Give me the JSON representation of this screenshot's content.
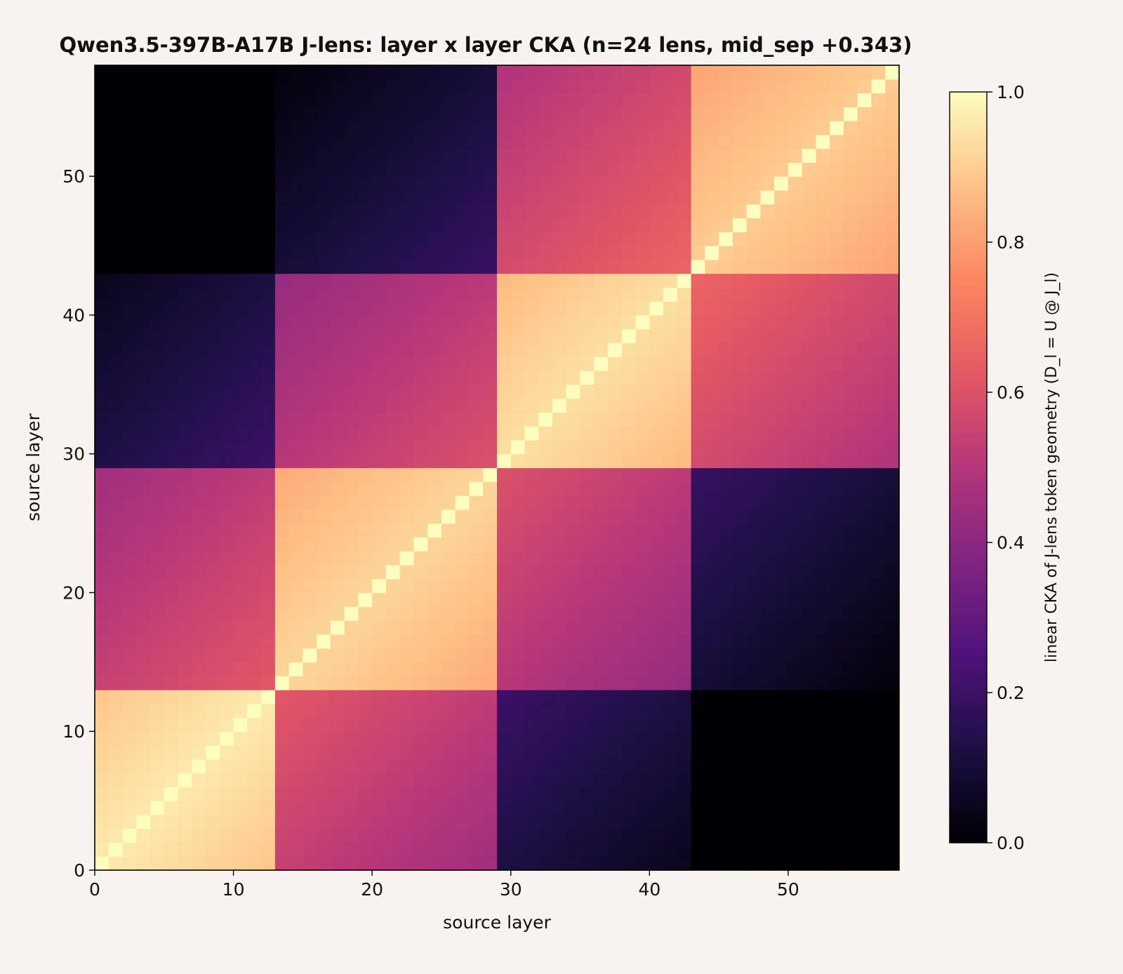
{
  "chart_data": {
    "type": "heatmap",
    "title": "Qwen3.5-397B-A17B J-lens: layer x layer CKA (n=24 lens, mid_sep +0.343)",
    "xlabel": "source layer",
    "ylabel": "source layer",
    "colorbar_label": "linear CKA of J-lens token geometry (D_l = U @ J_l)",
    "colormap": "magma",
    "colormap_stops": [
      "#000004",
      "#1c1044",
      "#4f127b",
      "#812581",
      "#b5367a",
      "#e55964",
      "#fb8761",
      "#fec287",
      "#fcfdbf"
    ],
    "n_layers": 58,
    "xlim": [
      0,
      58
    ],
    "ylim": [
      0,
      58
    ],
    "clim": [
      0,
      1
    ],
    "x_ticks": [
      0,
      10,
      20,
      30,
      40,
      50
    ],
    "y_ticks": [
      0,
      10,
      20,
      30,
      40,
      50
    ],
    "colorbar_ticks": [
      "0.0",
      "0.2",
      "0.4",
      "0.6",
      "0.8",
      "1.0"
    ],
    "colorbar_tick_values": [
      0,
      0.2,
      0.4,
      0.6,
      0.8,
      1.0
    ],
    "layer_blocks": [
      0,
      0,
      0,
      0,
      0,
      0,
      0,
      0,
      0,
      0,
      0,
      0,
      0,
      1,
      1,
      1,
      1,
      1,
      1,
      1,
      1,
      1,
      1,
      1,
      1,
      1,
      1,
      1,
      1,
      2,
      2,
      2,
      2,
      2,
      2,
      2,
      2,
      2,
      2,
      2,
      2,
      2,
      2,
      3,
      3,
      3,
      3,
      3,
      3,
      3,
      3,
      3,
      3,
      3,
      3,
      3,
      3,
      3
    ],
    "block_similarity": [
      [
        0.96,
        0.62,
        0.3,
        0.18
      ],
      [
        0.62,
        0.92,
        0.6,
        0.28
      ],
      [
        0.3,
        0.6,
        0.94,
        0.66
      ],
      [
        0.18,
        0.28,
        0.66,
        0.9
      ]
    ],
    "within_block_decay": 0.006,
    "diagonal": 1.0
  }
}
